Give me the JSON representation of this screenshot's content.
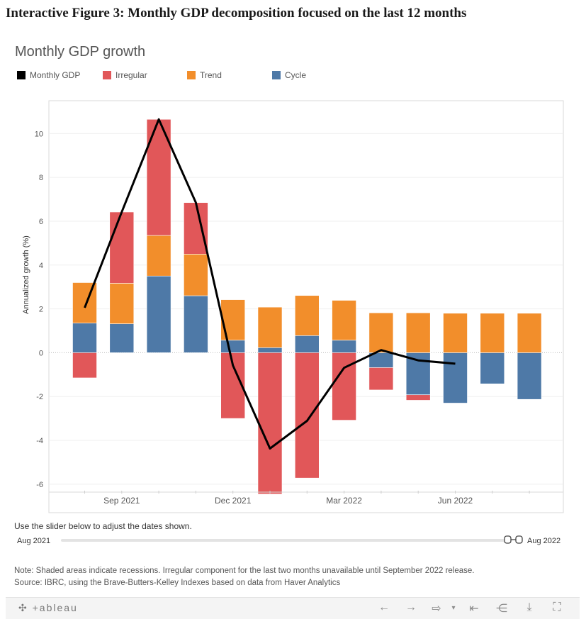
{
  "figure_title": "Interactive Figure 3: Monthly GDP decomposition focused on the last 12 months",
  "chart_data": {
    "type": "bar",
    "title": "Monthly GDP growth",
    "ylabel": "Annualized growth (%)",
    "xlabel": "",
    "ylim": [
      -7.3,
      11.5
    ],
    "yticks": [
      -6,
      -4,
      -2,
      0,
      2,
      4,
      6,
      8,
      10
    ],
    "xtick_labels": [
      {
        "label": "Sep 2021",
        "index": 1
      },
      {
        "label": "Dec 2021",
        "index": 4
      },
      {
        "label": "Mar 2022",
        "index": 7
      },
      {
        "label": "Jun 2022",
        "index": 10
      }
    ],
    "categories": [
      "Aug 2021",
      "Sep 2021",
      "Oct 2021",
      "Nov 2021",
      "Dec 2021",
      "Jan 2022",
      "Feb 2022",
      "Mar 2022",
      "Apr 2022",
      "May 2022",
      "Jun 2022",
      "Jul 2022",
      "Aug 2022"
    ],
    "grid": true,
    "legend_position": "top-left",
    "series": [
      {
        "name": "Cycle",
        "kind": "bar",
        "color": "#4e79a7",
        "values": [
          1.35,
          1.32,
          3.5,
          2.6,
          0.57,
          0.23,
          0.78,
          0.57,
          -0.68,
          -1.92,
          -2.3,
          -1.42,
          -2.13
        ]
      },
      {
        "name": "Trend",
        "kind": "bar",
        "color": "#f28e2b",
        "values": [
          1.85,
          1.85,
          1.85,
          1.9,
          1.85,
          1.85,
          1.83,
          1.82,
          1.82,
          1.82,
          1.8,
          1.8,
          1.8
        ]
      },
      {
        "name": "Irregular",
        "kind": "bar",
        "color": "#e15759",
        "values": [
          -1.15,
          3.25,
          5.3,
          2.35,
          -3.0,
          -6.45,
          -5.72,
          -3.08,
          -1.02,
          -0.25,
          null,
          null,
          null
        ]
      },
      {
        "name": "Monthly GDP",
        "kind": "line",
        "color": "#000000",
        "values": [
          2.05,
          6.42,
          10.65,
          6.85,
          -0.58,
          -4.37,
          -3.11,
          -0.69,
          0.12,
          -0.35,
          -0.5,
          null,
          null
        ]
      }
    ]
  },
  "legend": [
    {
      "label": "Monthly GDP",
      "color": "#000000"
    },
    {
      "label": "Irregular",
      "color": "#e15759"
    },
    {
      "label": "Trend",
      "color": "#f28e2b"
    },
    {
      "label": "Cycle",
      "color": "#4e79a7"
    }
  ],
  "slider": {
    "caption": "Use the slider below to adjust the dates shown.",
    "start_label": "Aug 2021",
    "end_label": "Aug 2022"
  },
  "note": {
    "line1": "Note: Shaded areas indicate recessions. Irregular component for the last two months unavailable until September 2022 release.",
    "line2": "Source: IBRC, using the Brave-Butters-Kelley Indexes based on data from Haver Analytics"
  },
  "toolbar": {
    "logo": "+ableau",
    "icons": [
      "undo-icon",
      "redo-icon",
      "revert-icon",
      "reset-icon",
      "share-icon",
      "download-icon",
      "fullscreen-icon"
    ]
  }
}
